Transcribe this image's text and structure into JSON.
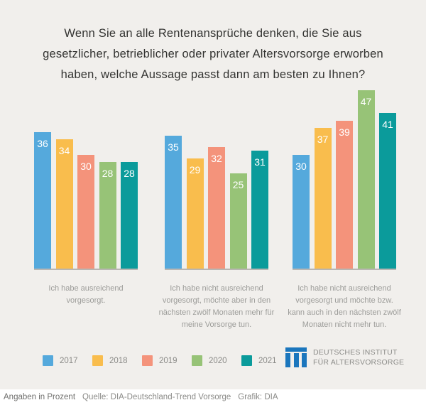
{
  "title": {
    "lines": [
      "Wenn Sie an alle Rentenansprüche denken, die Sie aus",
      "gesetzlicher, betrieblicher oder privater Altersvorsorge erworben",
      "haben, welche Aussage passt dann am besten zu Ihnen?"
    ]
  },
  "chart_data": {
    "type": "bar",
    "title": "Wenn Sie an alle Rentenansprüche denken, die Sie aus gesetzlicher, betrieblicher oder privater Altersvorsorge erworben haben, welche Aussage passt dann am besten zu Ihnen?",
    "unit": "Prozent",
    "categories": [
      "Ich habe ausreichend vorgesorgt.",
      "Ich habe nicht ausreichend vorgesorgt, möchte aber in den nächsten zwölf Monaten mehr für meine Vorsorge tun.",
      "Ich habe nicht ausreichend vorgesorgt und möchte bzw. kann auch in den nächsten zwölf Monaten nicht mehr tun."
    ],
    "categories_lines": [
      [
        "Ich habe ausreichend",
        "vorgesorgt."
      ],
      [
        "Ich habe nicht ausreichend",
        "vorgesorgt, möchte aber in den",
        "nächsten zwölf Monaten mehr für",
        "meine Vorsorge tun."
      ],
      [
        "Ich habe nicht ausreichend",
        "vorgesorgt und möchte bzw.",
        "kann auch in den nächsten zwölf",
        "Monaten nicht mehr tun."
      ]
    ],
    "series": [
      {
        "name": "2017",
        "color": "#55a9dc",
        "values": [
          36,
          35,
          30
        ]
      },
      {
        "name": "2018",
        "color": "#f9bd4d",
        "values": [
          34,
          29,
          37
        ]
      },
      {
        "name": "2019",
        "color": "#f4937b",
        "values": [
          30,
          32,
          39
        ]
      },
      {
        "name": "2020",
        "color": "#97c377",
        "values": [
          28,
          25,
          47
        ]
      },
      {
        "name": "2021",
        "color": "#0b9b9b",
        "values": [
          28,
          31,
          41
        ]
      }
    ],
    "ylim": [
      0,
      47
    ],
    "grid": false,
    "legend_position": "bottom",
    "value_labels": "inside-top"
  },
  "logo": {
    "color": "#1b76bd",
    "line1": "DEUTSCHES INSTITUT",
    "line2": "FÜR ALTERSVORSORGE"
  },
  "footer": {
    "note": "Angaben in Prozent",
    "source": "Quelle: DIA-Deutschland-Trend Vorsorge",
    "credit": "Grafik: DIA"
  }
}
